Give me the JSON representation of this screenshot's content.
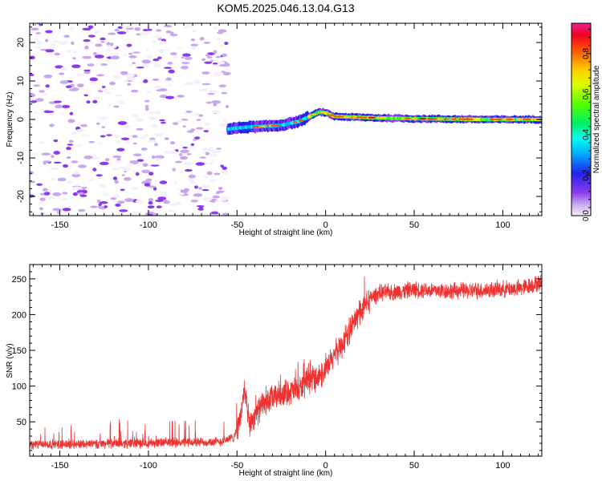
{
  "title": "KOM5.2025.046.13.04.G13",
  "chart_data": [
    {
      "type": "heatmap",
      "xlabel": "Height of straight line (km)",
      "ylabel": "Frequency (Hz)",
      "xlim": [
        -167,
        122
      ],
      "ylim": [
        -25,
        25
      ],
      "xticks": [
        -150,
        -100,
        -50,
        0,
        50,
        100
      ],
      "yticks": [
        -20,
        -10,
        0,
        10,
        20
      ],
      "noise_region_x": [
        -167,
        -55
      ],
      "signal_track": {
        "x": [
          -55,
          -45,
          -35,
          -25,
          -15,
          -8,
          -3,
          0,
          5,
          15,
          30,
          50,
          70,
          90,
          110,
          122
        ],
        "frequency_hz": [
          -2.5,
          -2,
          -1.8,
          -1.5,
          -0.5,
          1,
          2,
          1.7,
          0.8,
          0.6,
          0.4,
          0.2,
          0.1,
          0,
          0,
          0
        ]
      },
      "colorbar": {
        "label": "Normalized spectral amplitude",
        "range": [
          0,
          0.95
        ],
        "ticks": [
          0.0,
          0.2,
          0.4,
          0.6,
          0.8
        ]
      }
    },
    {
      "type": "line",
      "xlabel": "Height of straight line (km)",
      "ylabel": "SNR (v/v)",
      "xlim": [
        -167,
        122
      ],
      "ylim": [
        2,
        270
      ],
      "xticks": [
        -150,
        -100,
        -50,
        0,
        50,
        100
      ],
      "yticks": [
        50,
        100,
        150,
        200,
        250
      ],
      "series": [
        {
          "name": "SNR",
          "color": "#ee3333",
          "x": [
            -167,
            -60,
            -52,
            -48,
            -46,
            -43,
            -40,
            -35,
            -25,
            -15,
            -8,
            -3,
            0,
            5,
            10,
            15,
            20,
            25,
            30,
            40,
            50,
            70,
            90,
            110,
            122
          ],
          "y": [
            18,
            22,
            28,
            55,
            95,
            45,
            60,
            75,
            90,
            95,
            110,
            115,
            120,
            145,
            160,
            185,
            205,
            222,
            230,
            232,
            235,
            233,
            234,
            237,
            245
          ]
        }
      ]
    }
  ]
}
